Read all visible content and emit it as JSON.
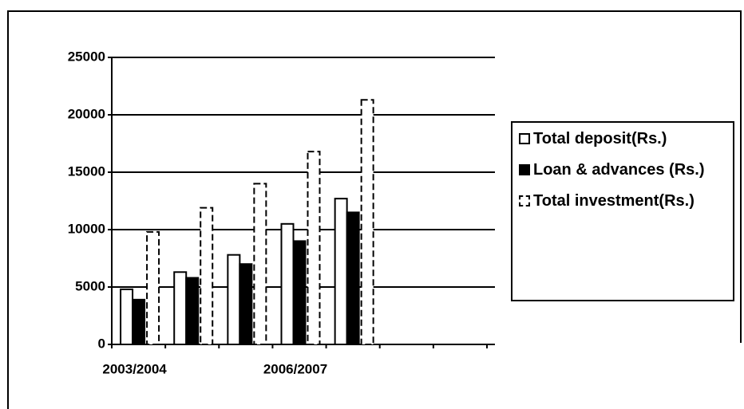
{
  "chart_data": {
    "type": "bar",
    "categories": [
      "2003/2004",
      null,
      null,
      "2006/2007",
      null,
      null,
      null
    ],
    "series": [
      {
        "name": "Total deposit(Rs.)",
        "color": "#ffffff",
        "pattern": "solid",
        "values": [
          4800,
          6300,
          7800,
          10500,
          12700,
          null,
          null
        ]
      },
      {
        "name": "Loan & advances (Rs.)",
        "color": "#000000",
        "pattern": "solid",
        "values": [
          3900,
          5800,
          7000,
          9000,
          11500,
          null,
          null
        ]
      },
      {
        "name": "Total investment(Rs.)",
        "color": "#ffffff",
        "pattern": "dashed",
        "values": [
          9800,
          11900,
          14000,
          16800,
          21300,
          null,
          null
        ]
      }
    ],
    "ylim": [
      0,
      25000
    ],
    "yticks": [
      0,
      5000,
      10000,
      15000,
      20000,
      25000
    ],
    "grid": true,
    "legend": "right"
  }
}
